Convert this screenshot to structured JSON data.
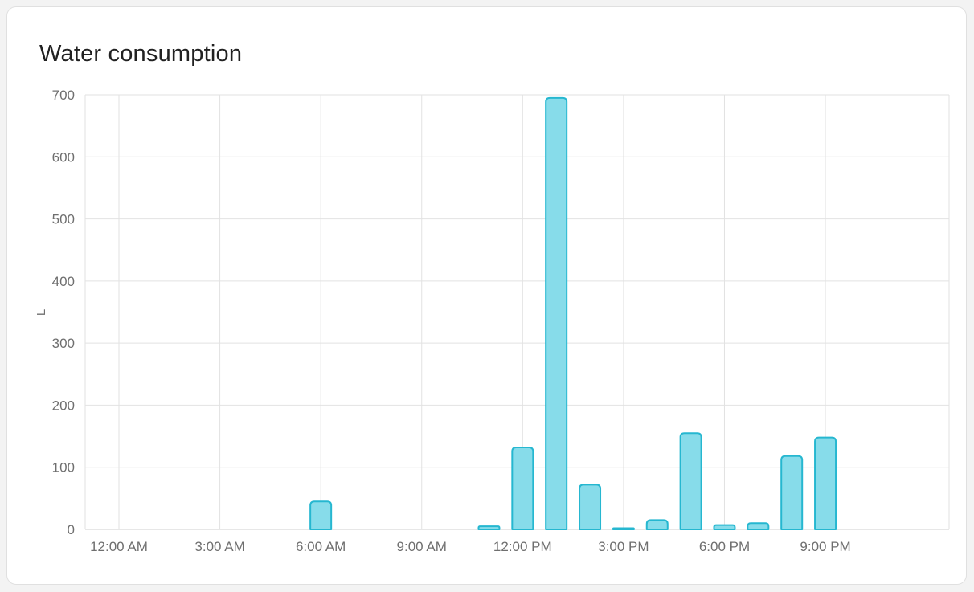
{
  "card": {
    "title": "Water consumption"
  },
  "chart_data": {
    "type": "bar",
    "title": "Water consumption",
    "xlabel": "",
    "ylabel": "L",
    "ylim": [
      0,
      700
    ],
    "y_ticks": [
      0,
      100,
      200,
      300,
      400,
      500,
      600,
      700
    ],
    "grid": true,
    "legend": "none",
    "categories": [
      "12:00 AM",
      "1:00 AM",
      "2:00 AM",
      "3:00 AM",
      "4:00 AM",
      "5:00 AM",
      "6:00 AM",
      "7:00 AM",
      "8:00 AM",
      "9:00 AM",
      "10:00 AM",
      "11:00 AM",
      "12:00 PM",
      "1:00 PM",
      "2:00 PM",
      "3:00 PM",
      "4:00 PM",
      "5:00 PM",
      "6:00 PM",
      "7:00 PM",
      "8:00 PM",
      "9:00 PM",
      "10:00 PM",
      "11:00 PM"
    ],
    "values": [
      0,
      0,
      0,
      0,
      0,
      0,
      45,
      0,
      0,
      0,
      0,
      5,
      132,
      695,
      72,
      2,
      15,
      155,
      7,
      10,
      118,
      148,
      0,
      0
    ],
    "x_tick_hours": [
      0,
      3,
      6,
      9,
      12,
      15,
      18,
      21
    ],
    "x_tick_labels": [
      "12:00 AM",
      "3:00 AM",
      "6:00 AM",
      "9:00 AM",
      "12:00 PM",
      "3:00 PM",
      "6:00 PM",
      "9:00 PM"
    ],
    "colors": {
      "bar_fill": "#87dcea",
      "bar_stroke": "#26b7d0",
      "grid": "#e2e2e2",
      "baseline": "#cfcfcf",
      "axis_label": "#6f6f6f",
      "title": "#212121",
      "card_bg": "#ffffff",
      "page_bg": "#f3f3f3"
    }
  }
}
